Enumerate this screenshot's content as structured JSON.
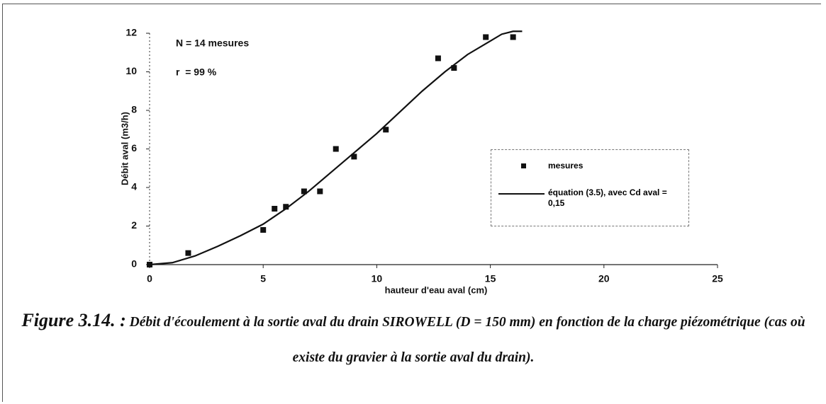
{
  "chart_data": {
    "type": "scatter",
    "x_label": "hauteur d'eau aval (cm)",
    "y_label": "Débit aval (m3/h)",
    "annotations": [
      "N = 14 mesures",
      "r  = 99 %"
    ],
    "xlim": [
      0,
      25
    ],
    "xticks": [
      0,
      5,
      10,
      15,
      20,
      25
    ],
    "ylim": [
      0,
      12
    ],
    "yticks": [
      0,
      2,
      4,
      6,
      8,
      10,
      12
    ],
    "grid": false,
    "series": [
      {
        "name": "mesures",
        "type": "scatter",
        "color": "#111111",
        "x": [
          0,
          1.7,
          5.0,
          5.5,
          6.0,
          6.8,
          7.5,
          8.2,
          9.0,
          10.4,
          12.7,
          13.4,
          14.8,
          16.0
        ],
        "values": [
          0,
          0.6,
          1.8,
          2.9,
          3.0,
          3.8,
          3.8,
          6.0,
          5.6,
          7.0,
          10.7,
          10.2,
          11.8,
          11.8
        ]
      },
      {
        "name": "équation (3.5), avec Cd aval = 0,15",
        "type": "line",
        "color": "#111111",
        "x": [
          0,
          1,
          2,
          3,
          4,
          5,
          6,
          7,
          8,
          9,
          10,
          11,
          12,
          13,
          14,
          15,
          15.5,
          16,
          16.4
        ],
        "values": [
          0,
          0.1,
          0.45,
          0.95,
          1.5,
          2.1,
          2.9,
          3.8,
          4.8,
          5.8,
          6.8,
          7.9,
          9.0,
          10.0,
          10.9,
          11.6,
          11.95,
          12.1,
          12.1
        ]
      }
    ]
  },
  "caption": {
    "label": "Figure 3.14. :",
    "text": "Débit d'écoulement à la sortie aval du drain SIROWELL (D = 150 mm) en fonction de la charge piézométrique (cas où existe du gravier à la sortie aval du drain)."
  }
}
